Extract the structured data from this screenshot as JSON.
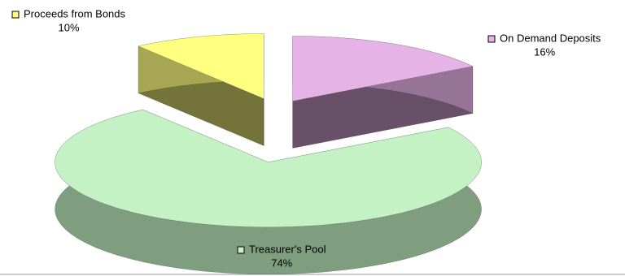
{
  "chart_data": {
    "type": "pie",
    "categories": [
      "On Demand Deposits",
      "Treasurer's Pool",
      "Proceeds from Bonds"
    ],
    "values": [
      16,
      74,
      10
    ],
    "value_labels": [
      "16%",
      "74%",
      "10%"
    ],
    "colors": [
      "#e6b3e6",
      "#c4f2c4",
      "#ffff80"
    ]
  }
}
